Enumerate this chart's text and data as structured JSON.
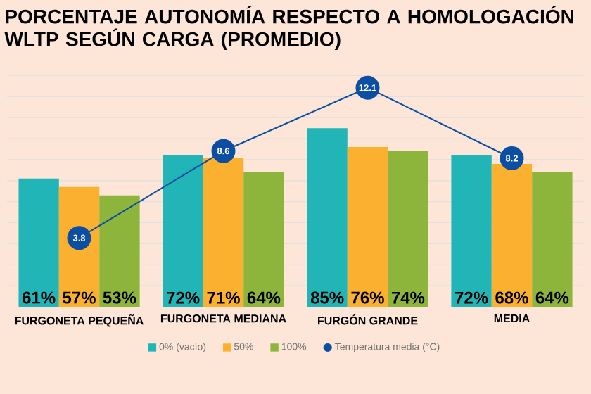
{
  "chart_data": {
    "type": "bar",
    "title": "PORCENTAJE AUTONOMÍA RESPECTO A HOMOLOGACIÓN WLTP SEGÚN CARGA (PROMEDIO)",
    "categories": [
      "FURGONETA PEQUEÑA",
      "FURGONETA MEDIANA",
      "FURGÓN GRANDE",
      "MEDIA"
    ],
    "series": [
      {
        "name": "0% (vacío)",
        "color": "#22b5b8",
        "values": [
          61,
          72,
          85,
          72
        ],
        "value_labels": [
          "61%",
          "72%",
          "85%",
          "72%"
        ]
      },
      {
        "name": "50%",
        "color": "#fbb030",
        "values": [
          57,
          71,
          76,
          68
        ],
        "value_labels": [
          "57%",
          "71%",
          "76%",
          "68%"
        ]
      },
      {
        "name": "100%",
        "color": "#8db53c",
        "values": [
          53,
          64,
          74,
          64
        ],
        "value_labels": [
          "53%",
          "64%",
          "74%",
          "64%"
        ]
      },
      {
        "name": "Temperatura media (°C)",
        "type": "line",
        "axis": "y2",
        "color": "#0b4ea2",
        "marker": "circle",
        "values": [
          3.8,
          8.6,
          12.1,
          8.2
        ],
        "value_labels": [
          "3.8",
          "8.6",
          "12.1",
          "8.2"
        ]
      }
    ],
    "yticks": [
      {
        "value": 10,
        "label": null
      },
      {
        "value": 20,
        "label": null
      },
      {
        "value": 30,
        "label": null
      },
      {
        "value": 40,
        "label": null
      },
      {
        "value": 50,
        "label": null
      },
      {
        "value": 60,
        "label": null
      },
      {
        "value": 70,
        "label": null
      },
      {
        "value": 80,
        "label": null
      },
      {
        "value": 90,
        "label": null
      },
      {
        "value": 100,
        "label": null
      },
      {
        "value": 110,
        "label": null
      }
    ],
    "grid": "y",
    "legend": "bottom",
    "tick_labels": "x"
  }
}
